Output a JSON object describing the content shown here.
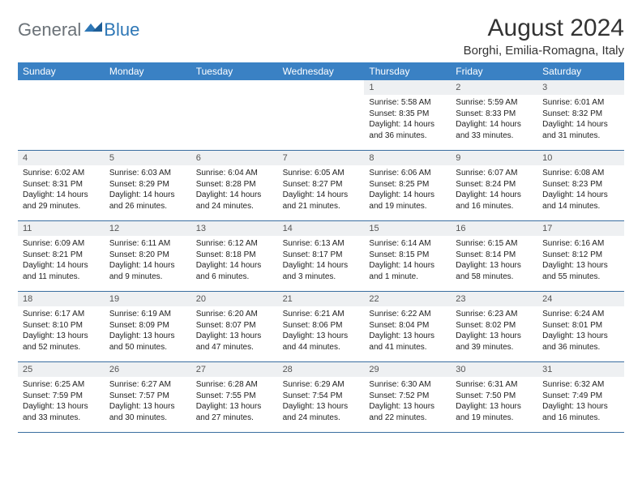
{
  "brand": {
    "general": "General",
    "blue": "Blue"
  },
  "title": "August 2024",
  "location": "Borghi, Emilia-Romagna, Italy",
  "colors": {
    "header_bg": "#3a81c4",
    "daynum_bg": "#eef0f2",
    "week_border": "#3a6ea0",
    "logo_gray": "#6b7278",
    "logo_blue": "#2e77b6"
  },
  "dow": [
    "Sunday",
    "Monday",
    "Tuesday",
    "Wednesday",
    "Thursday",
    "Friday",
    "Saturday"
  ],
  "weeks": [
    [
      {
        "n": "",
        "sr": "",
        "ss": "",
        "dl": ""
      },
      {
        "n": "",
        "sr": "",
        "ss": "",
        "dl": ""
      },
      {
        "n": "",
        "sr": "",
        "ss": "",
        "dl": ""
      },
      {
        "n": "",
        "sr": "",
        "ss": "",
        "dl": ""
      },
      {
        "n": "1",
        "sr": "Sunrise: 5:58 AM",
        "ss": "Sunset: 8:35 PM",
        "dl": "Daylight: 14 hours and 36 minutes."
      },
      {
        "n": "2",
        "sr": "Sunrise: 5:59 AM",
        "ss": "Sunset: 8:33 PM",
        "dl": "Daylight: 14 hours and 33 minutes."
      },
      {
        "n": "3",
        "sr": "Sunrise: 6:01 AM",
        "ss": "Sunset: 8:32 PM",
        "dl": "Daylight: 14 hours and 31 minutes."
      }
    ],
    [
      {
        "n": "4",
        "sr": "Sunrise: 6:02 AM",
        "ss": "Sunset: 8:31 PM",
        "dl": "Daylight: 14 hours and 29 minutes."
      },
      {
        "n": "5",
        "sr": "Sunrise: 6:03 AM",
        "ss": "Sunset: 8:29 PM",
        "dl": "Daylight: 14 hours and 26 minutes."
      },
      {
        "n": "6",
        "sr": "Sunrise: 6:04 AM",
        "ss": "Sunset: 8:28 PM",
        "dl": "Daylight: 14 hours and 24 minutes."
      },
      {
        "n": "7",
        "sr": "Sunrise: 6:05 AM",
        "ss": "Sunset: 8:27 PM",
        "dl": "Daylight: 14 hours and 21 minutes."
      },
      {
        "n": "8",
        "sr": "Sunrise: 6:06 AM",
        "ss": "Sunset: 8:25 PM",
        "dl": "Daylight: 14 hours and 19 minutes."
      },
      {
        "n": "9",
        "sr": "Sunrise: 6:07 AM",
        "ss": "Sunset: 8:24 PM",
        "dl": "Daylight: 14 hours and 16 minutes."
      },
      {
        "n": "10",
        "sr": "Sunrise: 6:08 AM",
        "ss": "Sunset: 8:23 PM",
        "dl": "Daylight: 14 hours and 14 minutes."
      }
    ],
    [
      {
        "n": "11",
        "sr": "Sunrise: 6:09 AM",
        "ss": "Sunset: 8:21 PM",
        "dl": "Daylight: 14 hours and 11 minutes."
      },
      {
        "n": "12",
        "sr": "Sunrise: 6:11 AM",
        "ss": "Sunset: 8:20 PM",
        "dl": "Daylight: 14 hours and 9 minutes."
      },
      {
        "n": "13",
        "sr": "Sunrise: 6:12 AM",
        "ss": "Sunset: 8:18 PM",
        "dl": "Daylight: 14 hours and 6 minutes."
      },
      {
        "n": "14",
        "sr": "Sunrise: 6:13 AM",
        "ss": "Sunset: 8:17 PM",
        "dl": "Daylight: 14 hours and 3 minutes."
      },
      {
        "n": "15",
        "sr": "Sunrise: 6:14 AM",
        "ss": "Sunset: 8:15 PM",
        "dl": "Daylight: 14 hours and 1 minute."
      },
      {
        "n": "16",
        "sr": "Sunrise: 6:15 AM",
        "ss": "Sunset: 8:14 PM",
        "dl": "Daylight: 13 hours and 58 minutes."
      },
      {
        "n": "17",
        "sr": "Sunrise: 6:16 AM",
        "ss": "Sunset: 8:12 PM",
        "dl": "Daylight: 13 hours and 55 minutes."
      }
    ],
    [
      {
        "n": "18",
        "sr": "Sunrise: 6:17 AM",
        "ss": "Sunset: 8:10 PM",
        "dl": "Daylight: 13 hours and 52 minutes."
      },
      {
        "n": "19",
        "sr": "Sunrise: 6:19 AM",
        "ss": "Sunset: 8:09 PM",
        "dl": "Daylight: 13 hours and 50 minutes."
      },
      {
        "n": "20",
        "sr": "Sunrise: 6:20 AM",
        "ss": "Sunset: 8:07 PM",
        "dl": "Daylight: 13 hours and 47 minutes."
      },
      {
        "n": "21",
        "sr": "Sunrise: 6:21 AM",
        "ss": "Sunset: 8:06 PM",
        "dl": "Daylight: 13 hours and 44 minutes."
      },
      {
        "n": "22",
        "sr": "Sunrise: 6:22 AM",
        "ss": "Sunset: 8:04 PM",
        "dl": "Daylight: 13 hours and 41 minutes."
      },
      {
        "n": "23",
        "sr": "Sunrise: 6:23 AM",
        "ss": "Sunset: 8:02 PM",
        "dl": "Daylight: 13 hours and 39 minutes."
      },
      {
        "n": "24",
        "sr": "Sunrise: 6:24 AM",
        "ss": "Sunset: 8:01 PM",
        "dl": "Daylight: 13 hours and 36 minutes."
      }
    ],
    [
      {
        "n": "25",
        "sr": "Sunrise: 6:25 AM",
        "ss": "Sunset: 7:59 PM",
        "dl": "Daylight: 13 hours and 33 minutes."
      },
      {
        "n": "26",
        "sr": "Sunrise: 6:27 AM",
        "ss": "Sunset: 7:57 PM",
        "dl": "Daylight: 13 hours and 30 minutes."
      },
      {
        "n": "27",
        "sr": "Sunrise: 6:28 AM",
        "ss": "Sunset: 7:55 PM",
        "dl": "Daylight: 13 hours and 27 minutes."
      },
      {
        "n": "28",
        "sr": "Sunrise: 6:29 AM",
        "ss": "Sunset: 7:54 PM",
        "dl": "Daylight: 13 hours and 24 minutes."
      },
      {
        "n": "29",
        "sr": "Sunrise: 6:30 AM",
        "ss": "Sunset: 7:52 PM",
        "dl": "Daylight: 13 hours and 22 minutes."
      },
      {
        "n": "30",
        "sr": "Sunrise: 6:31 AM",
        "ss": "Sunset: 7:50 PM",
        "dl": "Daylight: 13 hours and 19 minutes."
      },
      {
        "n": "31",
        "sr": "Sunrise: 6:32 AM",
        "ss": "Sunset: 7:49 PM",
        "dl": "Daylight: 13 hours and 16 minutes."
      }
    ]
  ]
}
